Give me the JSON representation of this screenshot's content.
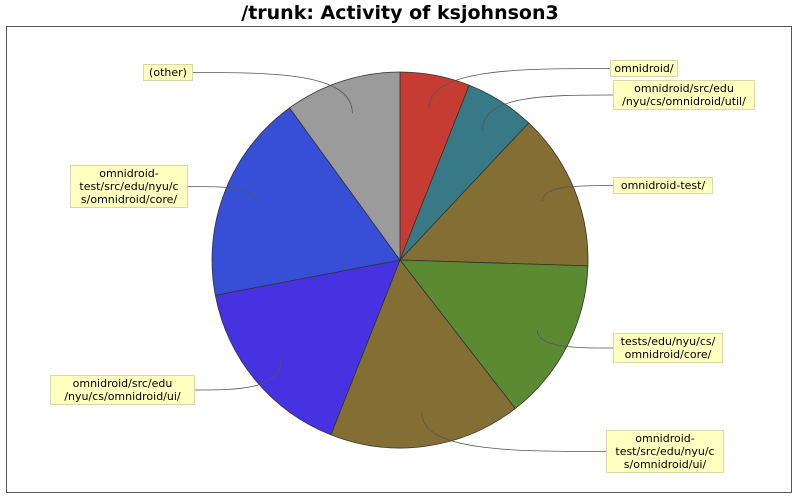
{
  "chart_data": {
    "type": "pie",
    "title": "/trunk: Activity of ksjohnson3",
    "slices": [
      {
        "label": "omnidroid/",
        "value": 6.0,
        "color": "#c63c33"
      },
      {
        "label": "omnidroid/src/edu\n/nyu/cs/omnidroid/util/",
        "value": 6.0,
        "color": "#377a86"
      },
      {
        "label": "omnidroid-test/",
        "value": 13.5,
        "color": "#836f34"
      },
      {
        "label": "tests/edu/nyu/cs/\nomnidroid/core/",
        "value": 14.0,
        "color": "#5b8a32"
      },
      {
        "label": "omnidroid-\ntest/src/edu/nyu/c\ns/omnidroid/ui/",
        "value": 16.5,
        "color": "#836f34"
      },
      {
        "label": "omnidroid/src/edu\n/nyu/cs/omnidroid/ui/",
        "value": 16.0,
        "color": "#4632e0"
      },
      {
        "label": "omnidroid-\ntest/src/edu/nyu/c\ns/omnidroid/core/",
        "value": 18.0,
        "color": "#374ed6"
      },
      {
        "label": "(other)",
        "value": 10.0,
        "color": "#9b9b9b"
      }
    ]
  }
}
